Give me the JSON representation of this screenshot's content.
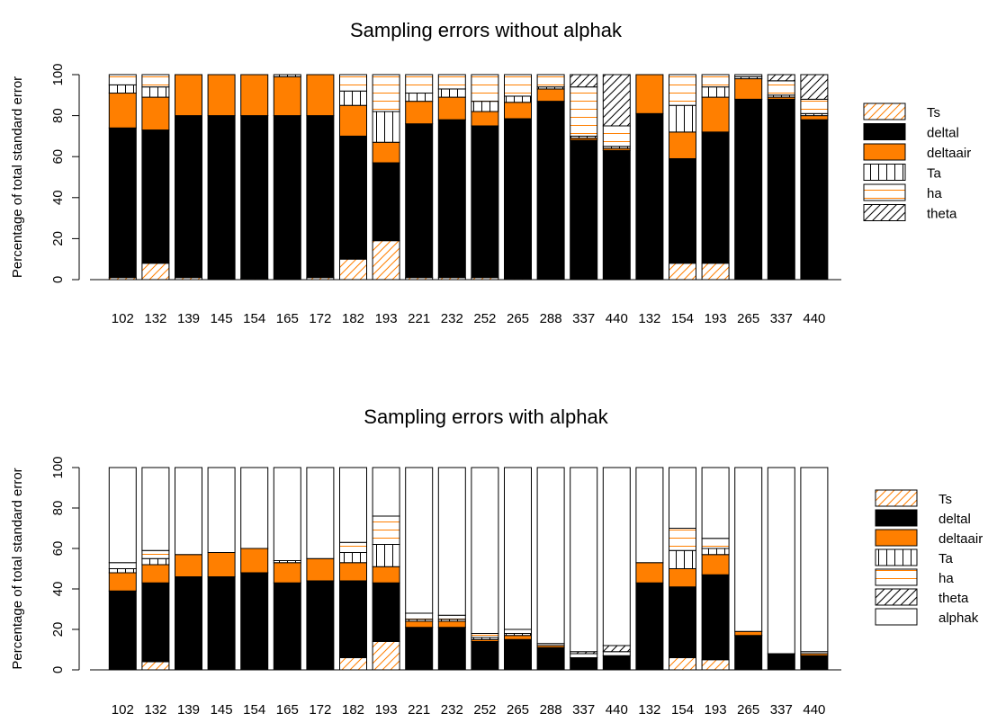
{
  "chart_data": [
    {
      "type": "stacked_bar",
      "title": "Sampling errors without alphak",
      "y_label": "Percentage of total standard error",
      "categories": [
        "102",
        "132",
        "139",
        "145",
        "154",
        "165",
        "172",
        "182",
        "193",
        "221",
        "232",
        "252",
        "265",
        "288",
        "337",
        "440",
        "132",
        "154",
        "193",
        "265",
        "337",
        "440"
      ],
      "ylim": [
        0,
        100
      ],
      "yticks": [
        0,
        20,
        40,
        60,
        80,
        100
      ],
      "legend": "right",
      "series": [
        {
          "name": "Ts",
          "color": "#ff7f00",
          "pattern": "diagonal",
          "values": [
            1,
            8,
            1,
            0,
            0.5,
            0,
            1,
            10,
            19,
            1,
            1,
            1,
            0.5,
            0,
            0,
            0,
            0,
            8,
            8,
            0,
            0,
            0
          ]
        },
        {
          "name": "deltal",
          "color": "#000000",
          "pattern": "solid",
          "values": [
            73,
            65,
            79,
            80,
            79.5,
            80,
            79,
            60,
            38,
            75,
            77,
            74,
            78,
            87,
            68,
            63,
            81,
            51,
            64,
            88,
            88,
            78
          ]
        },
        {
          "name": "deltaair",
          "color": "#ff7f00",
          "pattern": "solid",
          "values": [
            17,
            16,
            20,
            20,
            20,
            19,
            20,
            15,
            10,
            11,
            11,
            7,
            8,
            6,
            1,
            1,
            19,
            13,
            17,
            10,
            1,
            2
          ]
        },
        {
          "name": "Ta",
          "color": "#000000",
          "pattern": "vertical",
          "values": [
            4,
            5,
            0,
            0,
            0,
            1,
            0,
            7,
            15,
            4,
            4,
            5,
            3,
            1,
            1,
            1,
            0,
            13,
            5,
            1,
            1,
            1
          ]
        },
        {
          "name": "ha",
          "color": "#ff7f00",
          "pattern": "horizontal",
          "values": [
            5,
            6,
            0,
            0,
            0,
            0,
            0,
            8,
            18,
            9,
            7,
            13,
            10.5,
            6,
            24,
            10,
            0,
            15,
            6,
            1,
            7,
            7
          ]
        },
        {
          "name": "theta",
          "color": "#000000",
          "pattern": "diagonal",
          "values": [
            0,
            0,
            0,
            0,
            0,
            0,
            0,
            0,
            0,
            0,
            0,
            0,
            0,
            0,
            6,
            25,
            0,
            0,
            0,
            0,
            3,
            12
          ]
        }
      ]
    },
    {
      "type": "stacked_bar",
      "title": "Sampling errors with alphak",
      "y_label": "Percentage of total standard error",
      "categories": [
        "102",
        "132",
        "139",
        "145",
        "154",
        "165",
        "172",
        "182",
        "193",
        "221",
        "232",
        "252",
        "265",
        "288",
        "337",
        "440",
        "132",
        "154",
        "193",
        "265",
        "337",
        "440"
      ],
      "ylim": [
        0,
        100
      ],
      "yticks": [
        0,
        20,
        40,
        60,
        80,
        100
      ],
      "legend": "right",
      "series": [
        {
          "name": "Ts",
          "color": "#ff7f00",
          "pattern": "diagonal",
          "values": [
            0,
            4,
            0,
            0,
            0,
            0,
            0,
            6,
            14,
            0,
            0,
            0,
            0,
            0,
            0,
            0,
            0,
            6,
            5,
            0,
            0,
            0
          ]
        },
        {
          "name": "deltal",
          "color": "#000000",
          "pattern": "solid",
          "values": [
            39,
            39,
            46,
            46,
            48,
            43,
            44,
            38,
            29,
            21,
            21,
            14,
            15,
            11,
            6,
            7,
            43,
            35,
            42,
            17,
            8,
            7
          ]
        },
        {
          "name": "deltaair",
          "color": "#ff7f00",
          "pattern": "solid",
          "values": [
            9,
            9,
            11,
            12,
            12,
            10,
            11,
            9,
            8,
            3,
            3,
            1,
            2,
            1,
            0,
            0,
            10,
            9,
            10,
            2,
            0,
            1
          ]
        },
        {
          "name": "Ta",
          "color": "#000000",
          "pattern": "vertical",
          "values": [
            2,
            3,
            0,
            0,
            0,
            1,
            0,
            5,
            11,
            1,
            1,
            1,
            1,
            0,
            0,
            0,
            0,
            9,
            3,
            0,
            0,
            0
          ]
        },
        {
          "name": "ha",
          "color": "#ff7f00",
          "pattern": "horizontal",
          "values": [
            3,
            4,
            0,
            0,
            0,
            0,
            0,
            5,
            14,
            3,
            2,
            2,
            2,
            1,
            2,
            2,
            0,
            11,
            5,
            0,
            0,
            1
          ]
        },
        {
          "name": "theta",
          "color": "#000000",
          "pattern": "diagonal",
          "values": [
            0,
            0,
            0,
            0,
            0,
            0,
            0,
            0,
            0,
            0,
            0,
            0,
            0,
            0,
            1,
            3,
            0,
            0,
            0,
            0,
            0,
            0
          ]
        },
        {
          "name": "alphak",
          "color": "#ffffff",
          "pattern": "none",
          "values": [
            47,
            41,
            43,
            42,
            40,
            46,
            45,
            37,
            24,
            72,
            73,
            82,
            80,
            87,
            91,
            88,
            47,
            30,
            35,
            81,
            92,
            91
          ]
        }
      ]
    }
  ]
}
